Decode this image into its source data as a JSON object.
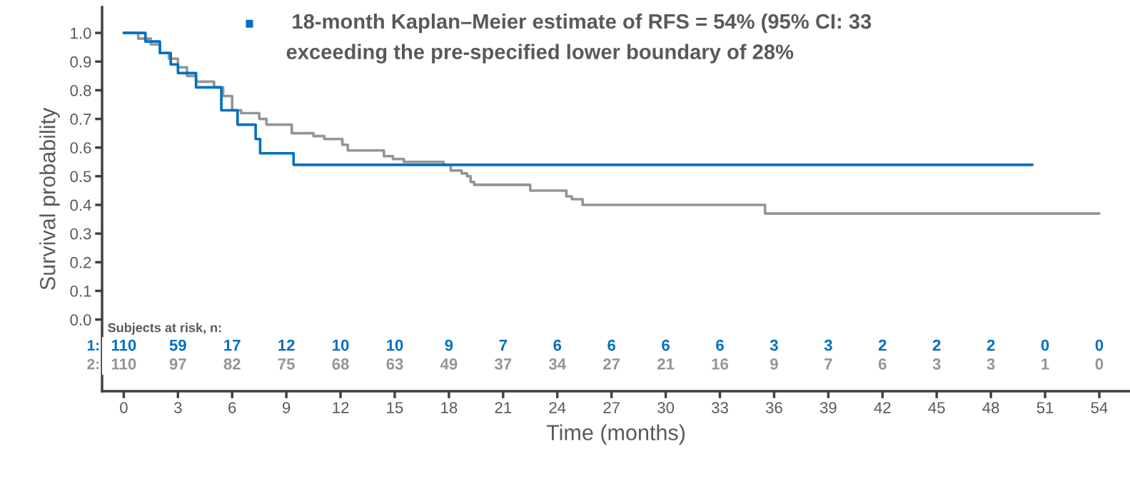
{
  "chart_data": [
    {
      "type": "step",
      "ylabel": "Survival probability",
      "xlabel": "Time (months)",
      "xlim": [
        -1.2,
        55.7
      ],
      "ylim": [
        -0.25,
        1.09
      ],
      "xticks": [
        0,
        3,
        6,
        9,
        12,
        15,
        18,
        21,
        24,
        27,
        30,
        33,
        36,
        39,
        42,
        45,
        48,
        51,
        54
      ],
      "yticks": [
        {
          "value": 0,
          "label": "0.0"
        },
        0.1,
        0.2,
        0.3,
        0.4,
        0.5,
        0.6,
        0.7,
        0.8,
        0.9,
        {
          "value": 1,
          "label": "1.0"
        }
      ],
      "annotations": [
        "18-month Kaplan–Meier estimate of RFS = 54% (95% CI: 33",
        "exceeding the pre-specified lower boundary of 28%"
      ],
      "series": [
        {
          "color": "#939598",
          "x": [
            0,
            0.8,
            1.5,
            2.0,
            2.5,
            3.0,
            3.5,
            4.0,
            5.0,
            5.5,
            6.0,
            6.5,
            7.5,
            7.9,
            9.3,
            10.5,
            11.1,
            12.1,
            12.4,
            14.4,
            14.9,
            15.5,
            17.7,
            18.1,
            18.7,
            19.0,
            19.2,
            19.4,
            22.5,
            24.5,
            24.8,
            25.4,
            35.5,
            54.0
          ],
          "values": [
            1.0,
            0.98,
            0.96,
            0.93,
            0.91,
            0.88,
            0.85,
            0.83,
            0.81,
            0.78,
            0.73,
            0.72,
            0.7,
            0.68,
            0.65,
            0.64,
            0.63,
            0.61,
            0.59,
            0.57,
            0.56,
            0.55,
            0.54,
            0.52,
            0.51,
            0.5,
            0.48,
            0.47,
            0.45,
            0.43,
            0.42,
            0.4,
            0.37,
            0.37
          ]
        },
        {
          "color": "#0070c0",
          "x": [
            0,
            1.2,
            2.0,
            2.6,
            3.0,
            4.0,
            5.4,
            6.3,
            7.3,
            7.55,
            9.4,
            50.3
          ],
          "values": [
            1.0,
            0.97,
            0.93,
            0.89,
            0.86,
            0.81,
            0.73,
            0.68,
            0.63,
            0.58,
            0.54,
            0.54
          ]
        }
      ]
    },
    {
      "type": "heatmap",
      "title": "Subjects at risk, n:",
      "categories": [
        null,
        null,
        null,
        null,
        null,
        null,
        null,
        null,
        null,
        null,
        null,
        null,
        null,
        null,
        null,
        null,
        null,
        null,
        null
      ],
      "y_categories": [
        "1:",
        "2:"
      ],
      "colors": [
        "#0070c0",
        "#939598"
      ],
      "data_labels": true,
      "cells": [
        [
          110,
          59,
          17,
          12,
          10,
          10,
          9,
          7,
          6,
          6,
          6,
          6,
          3,
          3,
          2,
          2,
          2,
          0,
          0
        ],
        [
          110,
          97,
          82,
          75,
          68,
          63,
          49,
          37,
          34,
          27,
          21,
          16,
          9,
          7,
          6,
          3,
          3,
          1,
          0
        ]
      ]
    }
  ]
}
